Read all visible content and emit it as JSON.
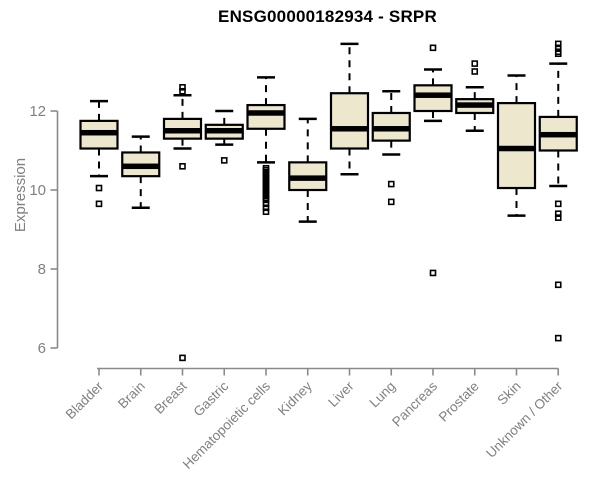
{
  "chart_data": {
    "type": "boxplot",
    "title": "ENSG00000182934 - SRPR",
    "ylabel": "Expression",
    "xlabel": "",
    "yticks": [
      6,
      8,
      10,
      12
    ],
    "ylim": [
      5.5,
      14.0
    ],
    "grid": false,
    "legend": "none",
    "categories": [
      "Bladder",
      "Brain",
      "Breast",
      "Gastric",
      "Hematopoietic cells",
      "Kidney",
      "Liver",
      "Lung",
      "Pancreas",
      "Prostate",
      "Skin",
      "Unknown / Other"
    ],
    "series": [
      {
        "category": "Bladder",
        "whisker_low": 10.35,
        "q1": 11.05,
        "median": 11.45,
        "q3": 11.75,
        "whisker_high": 12.25,
        "outliers": [
          10.05,
          9.65
        ]
      },
      {
        "category": "Brain",
        "whisker_low": 9.55,
        "q1": 10.35,
        "median": 10.6,
        "q3": 10.95,
        "whisker_high": 11.35,
        "outliers": []
      },
      {
        "category": "Breast",
        "whisker_low": 11.05,
        "q1": 11.3,
        "median": 11.5,
        "q3": 11.8,
        "whisker_high": 12.4,
        "outliers": [
          12.6,
          12.5,
          10.6,
          5.75
        ]
      },
      {
        "category": "Gastric",
        "whisker_low": 11.15,
        "q1": 11.3,
        "median": 11.5,
        "q3": 11.65,
        "whisker_high": 12.0,
        "outliers": [
          10.75
        ]
      },
      {
        "category": "Hematopoietic cells",
        "whisker_low": 10.7,
        "q1": 11.55,
        "median": 11.95,
        "q3": 12.15,
        "whisker_high": 12.85,
        "outliers": [
          10.55,
          10.5,
          10.45,
          10.4,
          10.35,
          10.3,
          10.25,
          10.2,
          10.15,
          10.1,
          10.05,
          10.0,
          9.95,
          9.9,
          9.85,
          9.8,
          9.75,
          9.65,
          9.55,
          9.45
        ]
      },
      {
        "category": "Kidney",
        "whisker_low": 9.2,
        "q1": 10.0,
        "median": 10.3,
        "q3": 10.7,
        "whisker_high": 11.8,
        "outliers": []
      },
      {
        "category": "Liver",
        "whisker_low": 10.4,
        "q1": 11.05,
        "median": 11.55,
        "q3": 12.45,
        "whisker_high": 13.7,
        "outliers": []
      },
      {
        "category": "Lung",
        "whisker_low": 10.9,
        "q1": 11.25,
        "median": 11.55,
        "q3": 11.95,
        "whisker_high": 12.5,
        "outliers": [
          10.15,
          9.7
        ]
      },
      {
        "category": "Pancreas",
        "whisker_low": 11.75,
        "q1": 12.0,
        "median": 12.4,
        "q3": 12.65,
        "whisker_high": 13.05,
        "outliers": [
          13.6,
          7.9
        ]
      },
      {
        "category": "Prostate",
        "whisker_low": 11.5,
        "q1": 11.95,
        "median": 12.15,
        "q3": 12.3,
        "whisker_high": 12.6,
        "outliers": [
          13.2,
          13.0
        ]
      },
      {
        "category": "Skin",
        "whisker_low": 9.35,
        "q1": 10.05,
        "median": 11.05,
        "q3": 12.2,
        "whisker_high": 12.9,
        "outliers": []
      },
      {
        "category": "Unknown / Other",
        "whisker_low": 10.1,
        "q1": 11.0,
        "median": 11.4,
        "q3": 11.85,
        "whisker_high": 13.2,
        "outliers": [
          13.7,
          13.6,
          13.5,
          13.45,
          9.65,
          9.4,
          9.3,
          7.6,
          6.25
        ]
      }
    ],
    "colors": {
      "box_fill": "#EDE7CD",
      "box_stroke": "#000000",
      "median": "#000000",
      "axis": "#8A8A8A",
      "tick_text": "#808080",
      "title_text": "#000000",
      "background": "#FFFFFF"
    }
  }
}
